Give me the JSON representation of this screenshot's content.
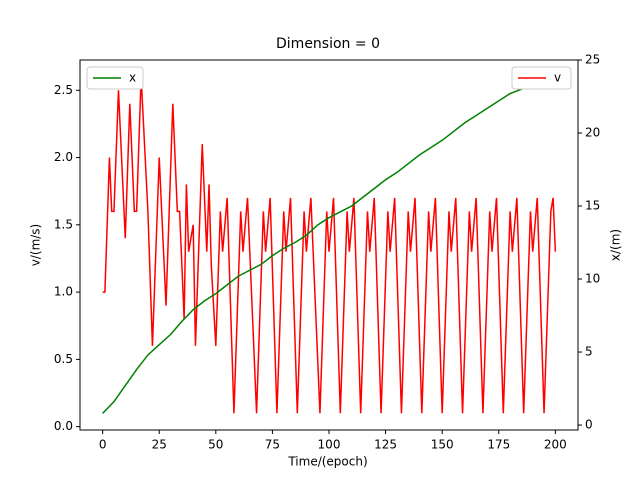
{
  "chart_data": {
    "type": "line",
    "title": "Dimension = 0",
    "xlabel": "Time/(epoch)",
    "ylabel": "v/(m/s)",
    "y2label": "x/(m)",
    "xlim": [
      -10,
      210
    ],
    "xticks": [
      0,
      25,
      50,
      75,
      100,
      125,
      150,
      175,
      200
    ],
    "ylim": [
      -0.025,
      2.725
    ],
    "yticks": [
      {
        "value": 0,
        "label": "0.0"
      },
      0.5,
      {
        "value": 1,
        "label": "1.0"
      },
      1.5,
      {
        "value": 2,
        "label": "2.0"
      },
      2.5
    ],
    "y2lim": [
      -0.34,
      25
    ],
    "y2ticks": [
      0,
      5,
      10,
      15,
      20,
      25
    ],
    "legend": {
      "left": "upper left",
      "right": "upper right"
    },
    "series": [
      {
        "name": "v",
        "color": "#ff0000",
        "x": [
          0,
          1,
          2,
          3,
          4,
          5,
          7,
          10,
          12,
          14,
          15,
          17,
          20,
          22,
          25,
          28,
          31,
          33,
          34,
          36,
          37,
          38,
          40,
          41,
          44,
          46,
          47,
          48,
          50,
          52,
          53,
          55,
          58,
          61,
          62,
          64,
          68,
          71,
          72,
          74,
          77,
          80,
          81,
          83,
          86,
          89,
          90,
          92,
          96,
          99,
          100,
          102,
          105,
          108,
          109,
          111,
          114,
          117,
          118,
          120,
          123,
          126,
          127,
          129,
          132,
          135,
          136,
          138,
          141,
          144,
          145,
          147,
          150,
          153,
          154,
          156,
          159,
          162,
          163,
          165,
          168,
          171,
          172,
          174,
          177,
          180,
          181,
          183,
          186,
          189,
          190,
          192,
          195,
          198,
          199,
          200
        ],
        "values": [
          1.0,
          1.0,
          1.5,
          2.0,
          1.6,
          1.6,
          2.5,
          1.4,
          2.4,
          1.6,
          1.6,
          2.6,
          1.6,
          0.6,
          2.0,
          0.9,
          2.4,
          1.6,
          1.6,
          0.8,
          1.8,
          1.3,
          1.5,
          0.6,
          2.1,
          1.3,
          1.8,
          1.2,
          0.6,
          1.6,
          1.3,
          1.7,
          0.1,
          1.6,
          1.3,
          1.7,
          0.1,
          1.6,
          1.3,
          1.7,
          0.1,
          1.6,
          1.3,
          1.7,
          0.1,
          1.6,
          1.3,
          1.7,
          0.1,
          1.6,
          1.3,
          1.7,
          0.1,
          1.6,
          1.3,
          1.7,
          0.1,
          1.6,
          1.3,
          1.7,
          0.1,
          1.6,
          1.3,
          1.7,
          0.1,
          1.6,
          1.3,
          1.7,
          0.1,
          1.6,
          1.3,
          1.7,
          0.1,
          1.6,
          1.3,
          1.7,
          0.1,
          1.6,
          1.3,
          1.7,
          0.1,
          1.6,
          1.3,
          1.7,
          0.1,
          1.6,
          1.3,
          1.7,
          0.1,
          1.6,
          1.3,
          1.7,
          0.1,
          1.6,
          1.7,
          1.3
        ]
      },
      {
        "name": "x",
        "color": "#008000",
        "axis": "y2",
        "x": [
          0,
          5,
          10,
          15,
          20,
          25,
          30,
          35,
          40,
          45,
          50,
          55,
          60,
          65,
          70,
          75,
          80,
          85,
          90,
          95,
          100,
          105,
          110,
          115,
          120,
          125,
          130,
          135,
          140,
          145,
          150,
          155,
          160,
          165,
          170,
          175,
          180,
          185,
          190,
          195,
          200
        ],
        "values": [
          0.8,
          1.6,
          2.7,
          3.8,
          4.8,
          5.5,
          6.2,
          7.1,
          7.9,
          8.5,
          9.0,
          9.6,
          10.2,
          10.6,
          11.0,
          11.6,
          12.1,
          12.5,
          13.0,
          13.7,
          14.2,
          14.6,
          15.0,
          15.6,
          16.2,
          16.8,
          17.3,
          17.9,
          18.5,
          19.0,
          19.5,
          20.1,
          20.7,
          21.2,
          21.7,
          22.2,
          22.7,
          23.0,
          23.4,
          23.8,
          24.2
        ]
      }
    ]
  }
}
